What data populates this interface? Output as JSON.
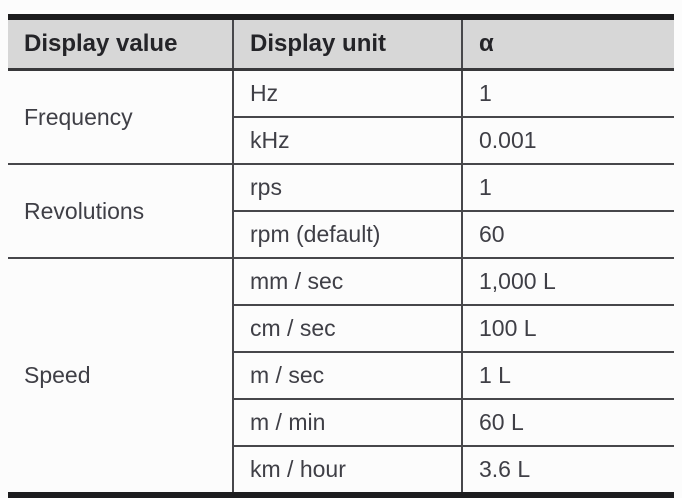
{
  "table": {
    "columns": [
      "Display value",
      "Display unit",
      "α"
    ],
    "groups": [
      {
        "value": "Frequency",
        "rows": [
          {
            "unit": "Hz",
            "alpha": "1"
          },
          {
            "unit": "kHz",
            "alpha": "0.001"
          }
        ]
      },
      {
        "value": "Revolutions",
        "rows": [
          {
            "unit": "rps",
            "alpha": "1"
          },
          {
            "unit": "rpm (default)",
            "alpha": "60"
          }
        ]
      },
      {
        "value": "Speed",
        "rows": [
          {
            "unit": "mm / sec",
            "alpha": "1,000 L"
          },
          {
            "unit": "cm / sec",
            "alpha": "100 L"
          },
          {
            "unit": "m / sec",
            "alpha": "1 L"
          },
          {
            "unit": "m / min",
            "alpha": "60 L"
          },
          {
            "unit": "km / hour",
            "alpha": "3.6 L"
          }
        ]
      }
    ]
  },
  "colors": {
    "page_bg": "#fcfcfc",
    "header_bg": "#d7d7d7",
    "header_text": "#242428",
    "text": "#3f3f46",
    "border_heavy": "#1d1d1f",
    "border_medium": "#38383a",
    "border_line": "#47474b"
  }
}
